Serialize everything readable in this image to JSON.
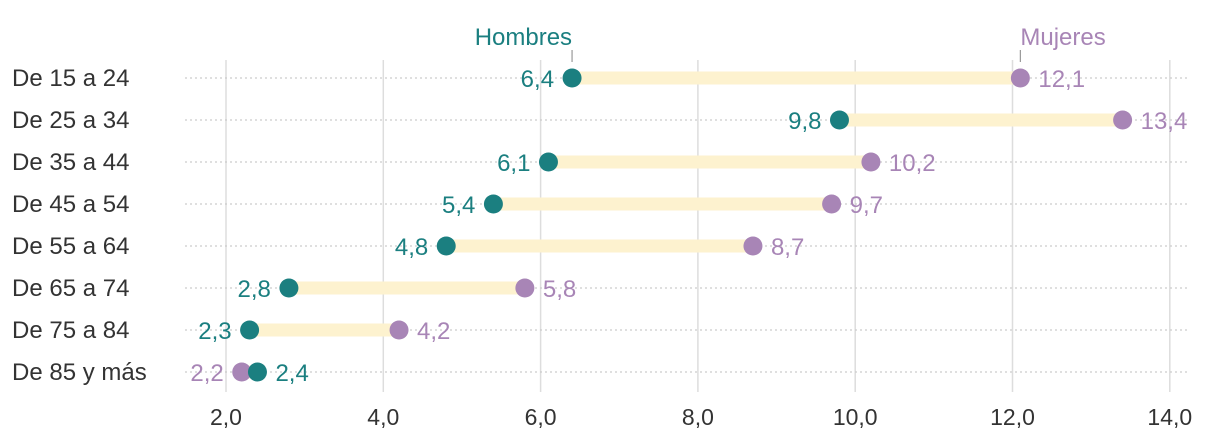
{
  "colors": {
    "men": "#1b7f80",
    "women": "#a885b6",
    "bar": "#fdf2cf",
    "grid": "#dddddd",
    "dots": "#cccccc",
    "text": "#333333"
  },
  "chart_data": {
    "type": "dumbbell",
    "title": "",
    "xlabel": "",
    "ylabel": "",
    "xlim": [
      1.6,
      14.2
    ],
    "xticks": [
      2.0,
      4.0,
      6.0,
      8.0,
      10.0,
      12.0,
      14.0
    ],
    "xtick_labels": [
      "2,0",
      "4,0",
      "6,0",
      "8,0",
      "10,0",
      "12,0",
      "14,0"
    ],
    "categories": [
      "De 15 a 24",
      "De 25 a 34",
      "De 35 a 44",
      "De 45 a 54",
      "De 55 a 64",
      "De 65 a 74",
      "De 75 a 84",
      "De 85 y más"
    ],
    "series": [
      {
        "name": "Hombres",
        "values": [
          6.4,
          9.8,
          6.1,
          5.4,
          4.8,
          2.8,
          2.3,
          2.4
        ],
        "labels": [
          "6,4",
          "9,8",
          "6,1",
          "5,4",
          "4,8",
          "2,8",
          "2,3",
          "2,4"
        ]
      },
      {
        "name": "Mujeres",
        "values": [
          12.1,
          13.4,
          10.2,
          9.7,
          8.7,
          5.8,
          4.2,
          2.2
        ],
        "labels": [
          "12,1",
          "13,4",
          "10,2",
          "9,7",
          "8,7",
          "5,8",
          "4,2",
          "2,2"
        ]
      }
    ],
    "legend": "labels above first row"
  }
}
